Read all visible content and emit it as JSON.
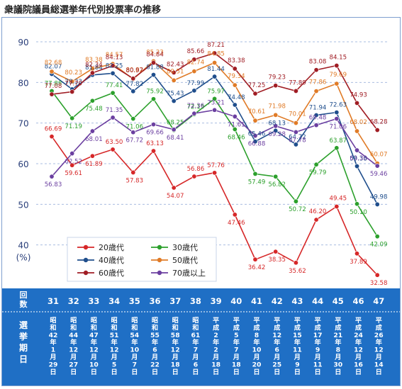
{
  "page": {
    "title": "衆議院議員総選挙年代別投票率の推移"
  },
  "chart_data": {
    "type": "line",
    "title": "衆議院議員総選挙年代別投票率の推移",
    "xlabel": "",
    "ylabel": "(%)",
    "ylim": [
      30,
      90
    ],
    "yticks": [
      40,
      50,
      60,
      70,
      80,
      90
    ],
    "grid": true,
    "legend_position": "bottom-left",
    "row_labels": {
      "kaisu": "回数",
      "kijitsu": "選挙期日"
    },
    "categories": [
      "31",
      "32",
      "33",
      "34",
      "35",
      "36",
      "37",
      "38",
      "39",
      "40",
      "41",
      "42",
      "43",
      "44",
      "45",
      "46",
      "47"
    ],
    "dates": [
      "昭和42年1月29日",
      "昭和44年12月27日",
      "昭和47年12月10日",
      "昭和51年12月5日",
      "昭和54年10月7日",
      "昭和55年6月22日",
      "昭和58年12月18日",
      "昭和61年7月6日",
      "平成2年2月18日",
      "平成5年7月18日",
      "平成8年10月20日",
      "平成12年6月25日",
      "平成15年11月9日",
      "平成17年9月11日",
      "平成21年8月30日",
      "平成24年12月16日",
      "平成26年12月14日"
    ],
    "series": [
      {
        "name": "20歳代",
        "color": "#d62728",
        "values": [
          66.69,
          59.61,
          61.89,
          63.5,
          57.83,
          63.13,
          54.07,
          56.86,
          57.76,
          47.46,
          36.42,
          38.35,
          35.62,
          46.2,
          49.45,
          37.89,
          32.58
        ],
        "labels": [
          "66.69",
          "59.61",
          "61.89",
          "63.50",
          "57.83",
          "63.13",
          "54.07",
          "56.86",
          "57.76",
          "47.46",
          "36.42",
          "38.35",
          "35.62",
          "46.20",
          "49.45",
          "37.89",
          "32.58"
        ]
      },
      {
        "name": "30歳代",
        "color": "#2ca02c",
        "values": [
          77.88,
          71.19,
          75.48,
          77.41,
          71.06,
          75.92,
          68.25,
          72.15,
          75.97,
          68.46,
          57.49,
          56.82,
          50.72,
          59.79,
          63.87,
          50.1,
          42.09
        ],
        "labels": [
          "77.88",
          "71.19",
          "75.48",
          "77.41",
          "71.06",
          "75.92",
          "68.25",
          "72.15",
          "75.97",
          "68.46",
          "57.49",
          "56.82",
          "50.72",
          "59.79",
          "63.87",
          "50.10",
          "42.09"
        ]
      },
      {
        "name": "40歳代",
        "color": "#1f4e8c",
        "values": [
          82.07,
          78.33,
          81.84,
          82.25,
          77.82,
          81.88,
          75.43,
          77.99,
          81.44,
          74.48,
          65.46,
          68.13,
          64.72,
          71.94,
          72.63,
          59.38,
          49.98
        ],
        "labels": [
          "82.07",
          "78.33",
          "81.84",
          "82.25",
          "77.82",
          "81.88",
          "75.43",
          "77.99",
          "81.44",
          "74.48",
          "65.46",
          "68.13",
          "64.72",
          "71.94",
          "72.63",
          "59.38",
          "49.98"
        ]
      },
      {
        "name": "50歳代",
        "color": "#e07b27",
        "values": [
          82.68,
          80.23,
          83.38,
          84.57,
          80.82,
          85.23,
          80.51,
          82.74,
          84.85,
          79.34,
          70.61,
          71.98,
          70.01,
          77.86,
          79.69,
          68.02,
          60.07
        ],
        "labels": [
          "82.68",
          "80.23",
          "83.38",
          "84.57",
          "80.82",
          "85.23",
          "80.51",
          "82.74",
          "84.85",
          "79.34",
          "70.61",
          "71.98",
          "70.01",
          "77.86",
          "79.69",
          "68.02",
          "60.07"
        ]
      },
      {
        "name": "60歳代",
        "color": "#a01d24",
        "values": [
          77.08,
          77.7,
          82.34,
          84.13,
          80.97,
          84.84,
          82.43,
          85.66,
          87.21,
          83.38,
          77.25,
          79.23,
          77.89,
          83.08,
          84.15,
          74.93,
          68.28
        ],
        "labels": [
          "77.08",
          "77.70",
          "82.34",
          "84.13",
          "80.97",
          "84.84",
          "82.43",
          "85.66",
          "87.21",
          "83.38",
          "77.25",
          "79.23",
          "77.89",
          "83.08",
          "84.15",
          "74.93",
          "68.28"
        ]
      },
      {
        "name": "70歳以上",
        "color": "#6b3fa0",
        "values": [
          56.83,
          62.52,
          68.01,
          71.35,
          67.72,
          69.66,
          68.41,
          72.36,
          73.21,
          71.61,
          66.88,
          69.28,
          67.78,
          69.48,
          71.06,
          63.3,
          59.46
        ],
        "labels": [
          "56.83",
          "62.52",
          "68.01",
          "71.35",
          "67.72",
          "69.66",
          "68.41",
          "72.36",
          "73.21",
          "71.61",
          "66.88",
          "69.28",
          "67.78",
          "69.48",
          "71.06",
          "63.30",
          "59.46"
        ]
      }
    ]
  }
}
